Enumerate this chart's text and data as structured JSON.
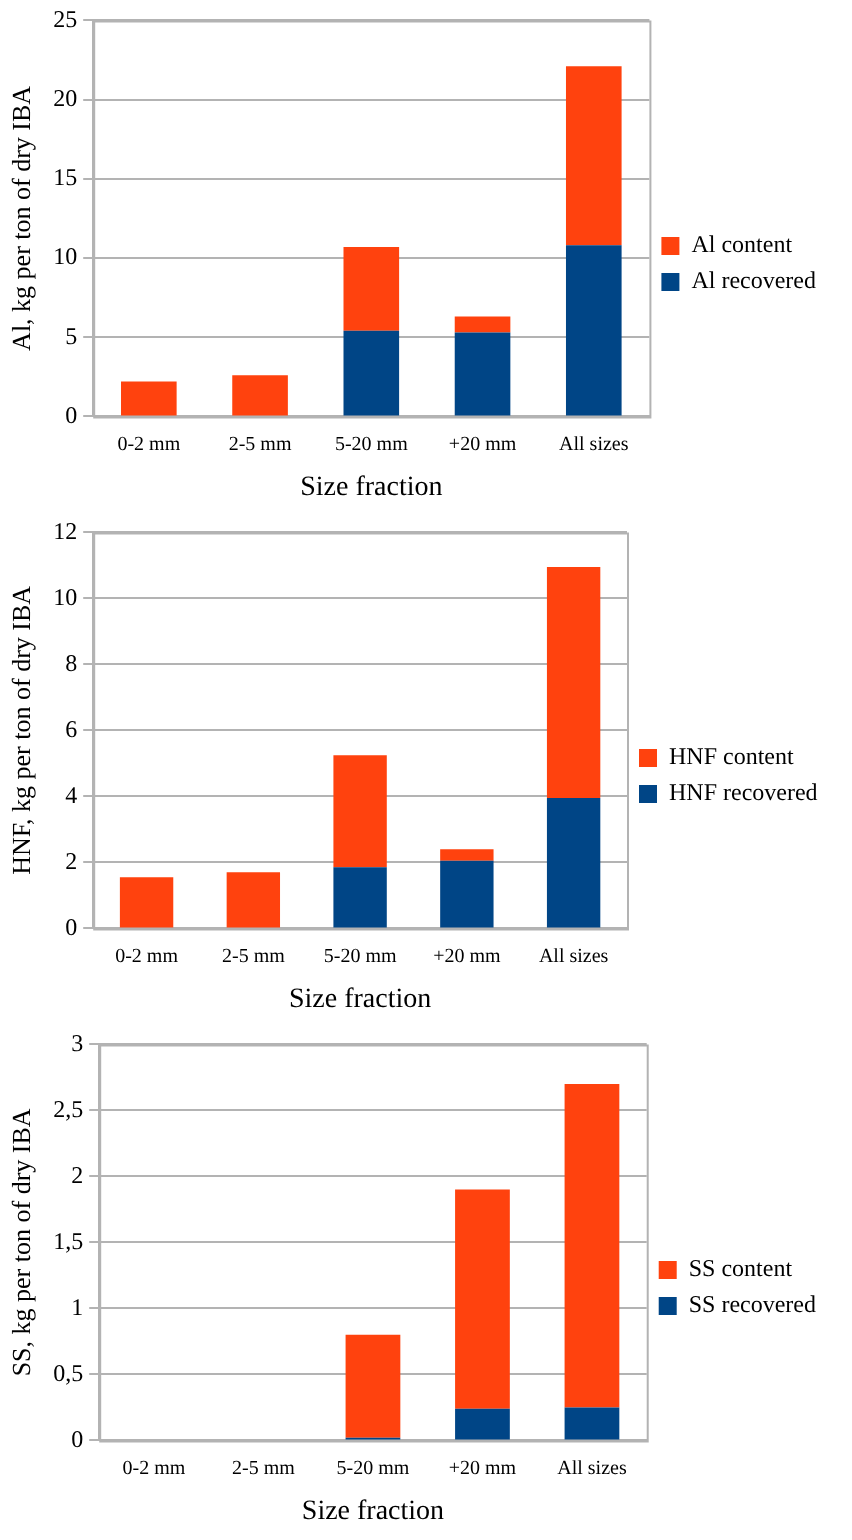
{
  "chart_data": [
    {
      "type": "bar",
      "stacked": true,
      "xlabel": "Size fraction",
      "ylabel": "Al, kg per ton of dry IBA",
      "categories": [
        "0-2 mm",
        "2-5 mm",
        "5-20 mm",
        "+20 mm",
        "All sizes"
      ],
      "ylim": [
        0,
        25
      ],
      "yticks": [
        0,
        5,
        10,
        15,
        20,
        25
      ],
      "grid": "y",
      "legend": "right",
      "series": [
        {
          "name": "Al recovered",
          "color": "#004586",
          "values": [
            0,
            0,
            5.4,
            5.3,
            10.8
          ]
        },
        {
          "name": "Al content",
          "color": "#ff420e",
          "values": [
            2.2,
            2.6,
            5.3,
            1.0,
            11.3
          ]
        }
      ]
    },
    {
      "type": "bar",
      "stacked": true,
      "xlabel": "Size fraction",
      "ylabel": "HNF, kg per ton of dry IBA",
      "categories": [
        "0-2 mm",
        "2-5 mm",
        "5-20 mm",
        "+20 mm",
        "All sizes"
      ],
      "ylim": [
        0,
        12
      ],
      "yticks": [
        0,
        2,
        4,
        6,
        8,
        10,
        12
      ],
      "grid": "y",
      "legend": "right",
      "series": [
        {
          "name": "HNF recovered",
          "color": "#004586",
          "values": [
            0,
            0,
            1.85,
            2.05,
            3.95
          ]
        },
        {
          "name": "HNF content",
          "color": "#ff420e",
          "values": [
            1.55,
            1.7,
            3.4,
            0.35,
            7.0
          ]
        }
      ]
    },
    {
      "type": "bar",
      "stacked": true,
      "xlabel": "Size fraction",
      "ylabel": "SS, kg per ton of dry IBA",
      "categories": [
        "0-2 mm",
        "2-5 mm",
        "5-20 mm",
        "+20 mm",
        "All sizes"
      ],
      "ylim": [
        0,
        3
      ],
      "yticks": [
        0,
        {
          "value": 0.5,
          "label": "0,5"
        },
        1,
        {
          "value": 1.5,
          "label": "1,5"
        },
        2,
        {
          "value": 2.5,
          "label": "2,5"
        },
        3
      ],
      "grid": "y",
      "legend": "right",
      "series": [
        {
          "name": "SS recovered",
          "color": "#004586",
          "values": [
            0,
            0,
            0.02,
            0.24,
            0.25
          ]
        },
        {
          "name": "SS content",
          "color": "#ff420e",
          "values": [
            0,
            0,
            0.78,
            1.66,
            2.45
          ]
        }
      ]
    }
  ]
}
